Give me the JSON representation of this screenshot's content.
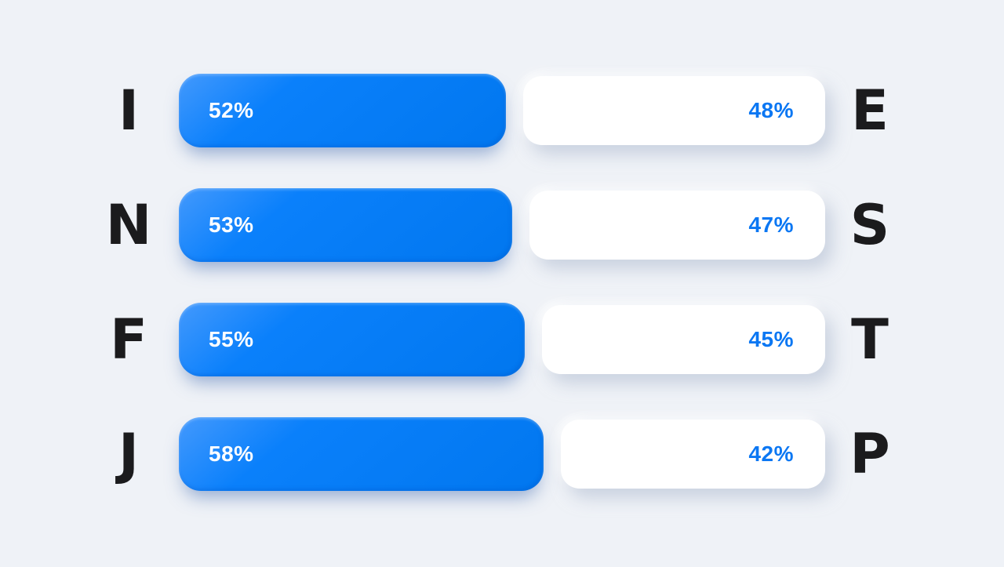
{
  "page": {
    "background_color": "#EFF2F7"
  },
  "chart_data": {
    "type": "bar",
    "subtype": "paired-horizontal-percentage-bars",
    "title": "",
    "unit": "%",
    "legend_position": "none",
    "grid": false,
    "colors": {
      "left_bar": "#0080FB",
      "left_bar_highlight": "#4399FD",
      "left_label_text": "#FFFFFF",
      "right_bar": "#FFFFFF",
      "right_label_text": "#0B77F3",
      "letter_text": "#1B1B1D",
      "background": "#EFF2F7"
    },
    "rows": [
      {
        "left_letter": "I",
        "left_pct": 52,
        "left_label": "52%",
        "right_pct": 48,
        "right_label": "48%",
        "right_letter": "E"
      },
      {
        "left_letter": "N",
        "left_pct": 53,
        "left_label": "53%",
        "right_pct": 47,
        "right_label": "47%",
        "right_letter": "S"
      },
      {
        "left_letter": "F",
        "left_pct": 55,
        "left_label": "55%",
        "right_pct": 45,
        "right_label": "45%",
        "right_letter": "T"
      },
      {
        "left_letter": "J",
        "left_pct": 58,
        "left_label": "58%",
        "right_pct": 42,
        "right_label": "42%",
        "right_letter": "P"
      }
    ]
  }
}
